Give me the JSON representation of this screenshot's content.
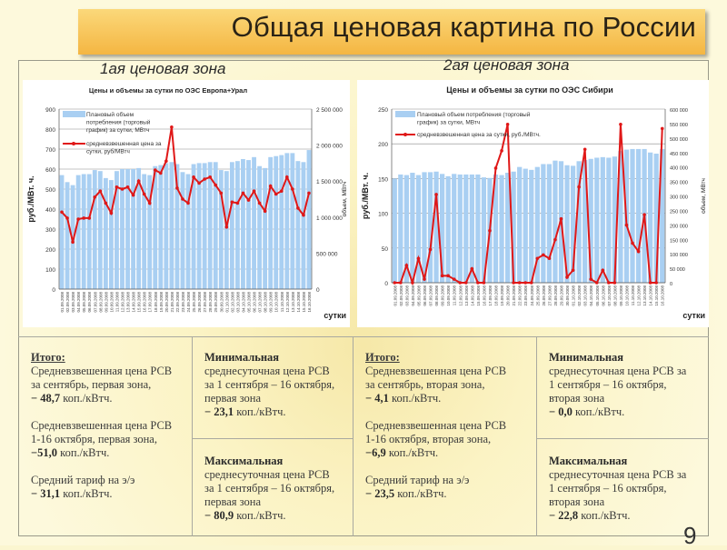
{
  "title": "Общая ценовая картина по России",
  "page_number": "9",
  "zones": {
    "zone1": "1ая ценовая зона",
    "zone2": "2ая ценовая зона"
  },
  "chart_data": [
    {
      "type": "bar+line",
      "title": "Цены и объемы за сутки по ОЭС Европа+Урал",
      "ylabel": "руб./МВт. ч.",
      "y2label": "объем, МВтч",
      "xlabel": "сутки",
      "ylim": [
        0,
        900
      ],
      "y2lim": [
        0,
        2500000
      ],
      "yticks": [
        "0",
        "100",
        "200",
        "300",
        "400",
        "500",
        "600",
        "700",
        "800",
        "900"
      ],
      "y2ticks": [
        "0",
        "500 000",
        "1 000 000",
        "1 500 000",
        "2 000 000",
        "2 500 000"
      ],
      "legend": {
        "bars": "Плановый объем потребления (торговый график) за сутки, МВтч",
        "line": "средневзвешенная цена за сутки, руб/МВтч"
      },
      "volume_mwh": [
        1583000,
        1486000,
        1444000,
        1583000,
        1597000,
        1597000,
        1653000,
        1639000,
        1542000,
        1514000,
        1639000,
        1667000,
        1667000,
        1667000,
        1681000,
        1597000,
        1583000,
        1708000,
        1722000,
        1750000,
        1764000,
        1736000,
        1625000,
        1597000,
        1736000,
        1750000,
        1750000,
        1764000,
        1764000,
        1653000,
        1639000,
        1764000,
        1778000,
        1806000,
        1792000,
        1833000,
        1708000,
        1681000,
        1833000,
        1847000,
        1861000,
        1889000,
        1889000,
        1778000,
        1764000,
        1931000
      ],
      "price": [
        385,
        355,
        235,
        350,
        355,
        355,
        460,
        490,
        430,
        380,
        510,
        500,
        510,
        470,
        540,
        475,
        430,
        595,
        580,
        640,
        810,
        505,
        450,
        430,
        560,
        530,
        550,
        560,
        520,
        480,
        310,
        435,
        430,
        480,
        445,
        490,
        430,
        390,
        515,
        475,
        490,
        560,
        500,
        405,
        370,
        480
      ]
    },
    {
      "type": "bar+line",
      "title": "Цены и объемы за сутки по ОЭС Сибири",
      "ylabel": "руб./МВт. ч.",
      "y2label": "объем, МВтч",
      "xlabel": "сутки",
      "ylim": [
        0,
        250
      ],
      "y2lim": [
        0,
        600000
      ],
      "yticks": [
        "0",
        "50",
        "100",
        "150",
        "200",
        "250"
      ],
      "y2ticks": [
        "0",
        "50 000",
        "100 000",
        "150 000",
        "200 000",
        "250 000",
        "300 000",
        "350 000",
        "400 000",
        "450 000",
        "500 000",
        "550 000",
        "600 000"
      ],
      "legend": {
        "bars": "Плановый объем потребления (торговый график) за сутки, МВтч",
        "line": "средневзвешенная цена за сутки, руб./МВтч."
      },
      "volume_mwh": [
        360000,
        374000,
        372000,
        380000,
        372000,
        382000,
        382000,
        384000,
        376000,
        368000,
        376000,
        374000,
        374000,
        374000,
        374000,
        364000,
        362000,
        374000,
        372000,
        380000,
        384000,
        400000,
        394000,
        390000,
        400000,
        410000,
        410000,
        422000,
        420000,
        406000,
        404000,
        420000,
        424000,
        428000,
        432000,
        434000,
        432000,
        436000,
        455000,
        460000,
        462000,
        462000,
        462000,
        450000,
        446000,
        462000
      ],
      "price": [
        0,
        0,
        25,
        0,
        35,
        5,
        48,
        127,
        10,
        10,
        5,
        0,
        0,
        20,
        0,
        0,
        75,
        165,
        190,
        228,
        0,
        0,
        0,
        0,
        35,
        40,
        35,
        62,
        92,
        8,
        18,
        138,
        192,
        5,
        0,
        18,
        0,
        0,
        228,
        83,
        57,
        45,
        98,
        0,
        0,
        222
      ]
    }
  ],
  "dates": [
    "01.09.2008",
    "02.09.2008",
    "03.09.2008",
    "04.09.2008",
    "05.09.2008",
    "06.09.2008",
    "07.09.2008",
    "08.09.2008",
    "09.09.2008",
    "10.09.2008",
    "11.09.2008",
    "12.09.2008",
    "13.09.2008",
    "14.09.2008",
    "15.09.2008",
    "16.09.2008",
    "17.09.2008",
    "18.09.2008",
    "19.09.2008",
    "20.09.2008",
    "21.09.2008",
    "22.09.2008",
    "23.09.2008",
    "24.09.2008",
    "25.09.2008",
    "26.09.2008",
    "27.09.2008",
    "28.09.2008",
    "29.09.2008",
    "30.09.2008",
    "01.10.2008",
    "02.10.2008",
    "03.10.2008",
    "04.10.2008",
    "05.10.2008",
    "06.10.2008",
    "07.10.2008",
    "08.10.2008",
    "09.10.2008",
    "10.10.2008",
    "11.10.2008",
    "12.10.2008",
    "13.10.2008",
    "14.10.2008",
    "15.10.2008",
    "16.10.2008"
  ],
  "colors": {
    "bars": "#a9cff2",
    "line": "#e01818"
  },
  "table": {
    "z1_total": {
      "heading": "Итого:",
      "l1": "Средневзвешенная цена РСВ",
      "l2": "за сентябрь, первая зона,",
      "v1": "− 48,7",
      "u": "коп./кВтч.",
      "l3": "Средневзвешенная цена РСВ",
      "l4": "1-16 октября, первая зона,",
      "v2": "−51,0",
      "l5": "Средний тариф на э/э",
      "v3": "− 31,1"
    },
    "z1_min": {
      "heading": "Минимальная",
      "l1": "среднесуточная цена РСВ",
      "l2": "за 1 сентября – 16 октября,",
      "l3": "первая зона",
      "v": "− 23,1",
      "u": "коп./кВтч."
    },
    "z1_max": {
      "heading": "Максимальная",
      "l1": "среднесуточная цена РСВ",
      "l2": "за 1 сентября – 16 октября,",
      "l3": "первая зона",
      "v": "− 80,9",
      "u": "коп./кВтч."
    },
    "z2_total": {
      "heading": "Итого:",
      "l1": "Средневзвешенная цена РСВ",
      "l2": "за сентябрь, вторая зона,",
      "v1": "− 4,1",
      "u": "коп./кВтч.",
      "l3": "Средневзвешенная цена РСВ",
      "l4": "1-16 октября, вторая зона,",
      "v2": "−6,9",
      "l5": "Средний тариф на э/э",
      "v3": "− 23,5"
    },
    "z2_min": {
      "heading": "Минимальная",
      "l1": "среднесуточная цена РСВ за",
      "l2": "1 сентября – 16 октября,",
      "l3": "вторая зона",
      "v": "− 0,0",
      "u": "коп./кВтч."
    },
    "z2_max": {
      "heading": "Максимальная",
      "l1": "среднесуточная цена РСВ за",
      "l2": "1 сентября – 16 октября,",
      "l3": "вторая зона",
      "v": "− 22,8",
      "u": "коп./кВтч."
    }
  }
}
